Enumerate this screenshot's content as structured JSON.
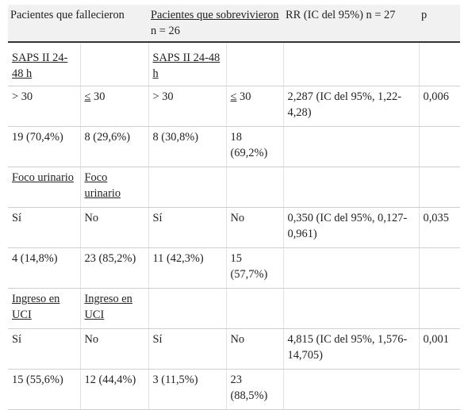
{
  "header": {
    "col1": "Pacientes que fallecieron",
    "col3_underlined": "Pacientes que sobrevivieron",
    "col3_suffix": " n = 26",
    "col5": "RR (IC del 95%) n = 27",
    "col6": "p"
  },
  "rows": [
    [
      "SAPS II 24-48 h",
      "",
      "SAPS II 24-48 h",
      "",
      "",
      ""
    ],
    [
      "> 30",
      "≤ 30",
      "> 30",
      "≤ 30",
      "2,287 (IC del 95%, 1,22-4,28)",
      "0,006"
    ],
    [
      "19 (70,4%)",
      "8 (29,6%)",
      "8 (30,8%)",
      "18 (69,2%)",
      "",
      ""
    ],
    [
      "Foco urinario",
      "Foco urinario",
      "",
      "",
      "",
      ""
    ],
    [
      "Sí",
      "No",
      "Sí",
      "No",
      "0,350 (IC del 95%, 0,127-0,961)",
      "0,035"
    ],
    [
      "4 (14,8%)",
      "23 (85,2%)",
      "11 (42,3%)",
      "15 (57,7%)",
      "",
      ""
    ],
    [
      "Ingreso en UCI",
      "Ingreso en UCI",
      "",
      "",
      "",
      ""
    ],
    [
      "Sí",
      "No",
      "Sí",
      "No",
      "4,815 (IC del 95%, 1,576-14,705)",
      "0,001"
    ],
    [
      "15 (55,6%)",
      "12 (44,4%)",
      "3 (11,5%)",
      "23 (88,5%)",
      "",
      ""
    ]
  ]
}
